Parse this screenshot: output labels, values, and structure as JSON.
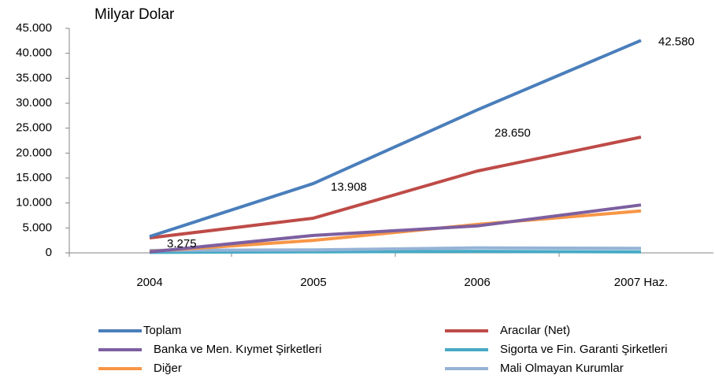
{
  "chart_data": {
    "type": "line",
    "title": "Milyar Dolar",
    "categories": [
      "2004",
      "2005",
      "2006",
      "2007 Haz."
    ],
    "series": [
      {
        "name": "Toplam",
        "color": "#4a7ebb",
        "values": [
          3275,
          13908,
          28650,
          42580
        ],
        "value_labels": [
          "3.275",
          "13.908",
          "28.650",
          "42.580"
        ]
      },
      {
        "name": "Aracılar (Net)",
        "color": "#be4b48",
        "values": [
          3000,
          6950,
          16400,
          23200
        ]
      },
      {
        "name": "Banka ve Men. Kıymet Şirketleri",
        "color": "#7d5fa0",
        "values": [
          200,
          3500,
          5400,
          9600
        ]
      },
      {
        "name": "Sigorta ve Fin. Garanti Şirketleri",
        "color": "#46aac5",
        "values": [
          100,
          200,
          300,
          200
        ]
      },
      {
        "name": "Diğer",
        "color": "#f79646",
        "values": [
          300,
          2500,
          5700,
          8400
        ]
      },
      {
        "name": "Mali Olmayan Kurumlar",
        "color": "#94b3d6",
        "values": [
          500,
          600,
          1000,
          900
        ]
      }
    ],
    "ylim": [
      0,
      45000
    ],
    "yticks": [
      0,
      {
        "value": 5000,
        "label": "5.000"
      },
      {
        "value": 10000,
        "label": "10.000"
      },
      {
        "value": 15000,
        "label": "15.000"
      },
      {
        "value": 20000,
        "label": "20.000"
      },
      {
        "value": 25000,
        "label": "25.000"
      },
      {
        "value": 30000,
        "label": "30.000"
      },
      {
        "value": 35000,
        "label": "35.000"
      },
      {
        "value": 40000,
        "label": "40.000"
      },
      {
        "value": 45000,
        "label": "45.000"
      }
    ],
    "grid": false,
    "legend": "bottom"
  }
}
